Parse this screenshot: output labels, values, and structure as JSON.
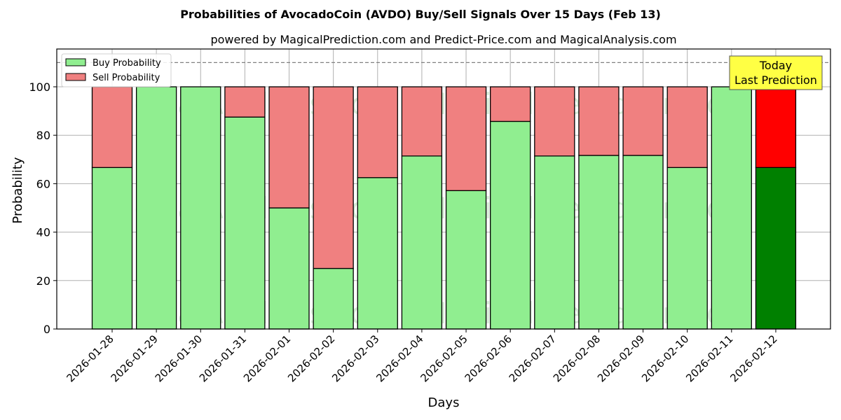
{
  "chart_data": {
    "type": "bar",
    "stacked": true,
    "title": "Probabilities of AvocadoCoin (AVDO) Buy/Sell Signals Over 15 Days (Feb 13)",
    "subtitle": "powered by MagicalPrediction.com and Predict-Price.com and MagicalAnalysis.com",
    "xlabel": "Days",
    "ylabel": "Probability",
    "ylim": [
      0,
      115
    ],
    "yticks": [
      0,
      20,
      40,
      60,
      80,
      100
    ],
    "grid": true,
    "legend_position": "upper left",
    "reference_line": {
      "y": 110,
      "style": "dashed"
    },
    "categories": [
      "2026-01-28",
      "2026-01-29",
      "2026-01-30",
      "2026-01-31",
      "2026-02-01",
      "2026-02-02",
      "2026-02-03",
      "2026-02-04",
      "2026-02-05",
      "2026-02-06",
      "2026-02-07",
      "2026-02-08",
      "2026-02-09",
      "2026-02-10",
      "2026-02-11",
      "2026-02-12"
    ],
    "series": [
      {
        "name": "Buy Probability",
        "color": "#90ee90",
        "values": [
          66.67,
          100,
          100,
          87.5,
          50,
          25,
          62.5,
          71.43,
          57.14,
          85.71,
          71.43,
          71.67,
          71.67,
          66.67,
          100,
          66.67
        ]
      },
      {
        "name": "Sell Probability",
        "color": "#f08080",
        "values": [
          33.33,
          0,
          0,
          12.5,
          50,
          75,
          37.5,
          28.57,
          42.86,
          14.29,
          28.57,
          28.33,
          28.33,
          33.33,
          0,
          33.33
        ]
      }
    ],
    "highlight": {
      "index": 15,
      "buy_color": "#008000",
      "sell_color": "#ff0000"
    },
    "annotation": {
      "text": [
        "Today",
        "Last Prediction"
      ],
      "background": "#ffff44"
    },
    "watermarks": [
      "MagicalAnalysis.com",
      "MagicalPrediction.com"
    ]
  }
}
